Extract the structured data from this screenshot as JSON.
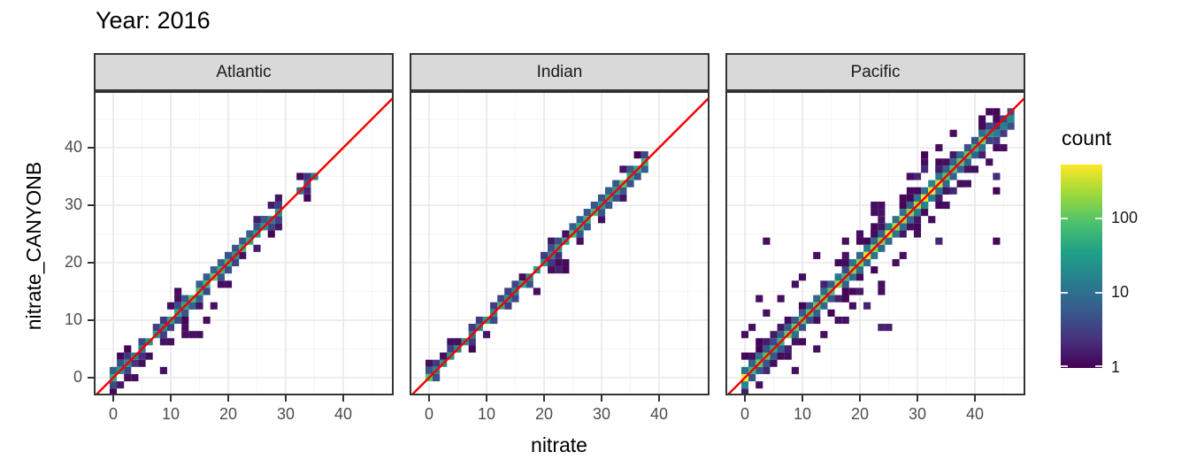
{
  "title": "Year: 2016",
  "axes": {
    "x_label": "nitrate",
    "y_label": "nitrate_CANYONB",
    "x_ticks": [
      0,
      10,
      20,
      30,
      40
    ],
    "y_ticks": [
      0,
      10,
      20,
      30,
      40
    ],
    "minor_ticks": [
      5,
      15,
      25,
      35,
      45
    ],
    "xlim": [
      -3.4,
      49.8
    ],
    "ylim": [
      -3.1,
      49.8
    ]
  },
  "legend": {
    "title": "count",
    "scale": "log10",
    "domain": [
      1,
      520
    ],
    "ticks": [
      {
        "label": "1",
        "value": 1
      },
      {
        "label": "10",
        "value": 10
      },
      {
        "label": "100",
        "value": 100
      }
    ]
  },
  "colors": {
    "abline": "#f40000",
    "strip_bg": "#d9d9d9",
    "panel_border": "#333333",
    "grid_major": "#e8e8e8",
    "grid_minor": "#f4f4f4",
    "tick_text": "#4d4d4d",
    "viridis": [
      [
        0,
        "#440154"
      ],
      [
        0.14,
        "#46327e"
      ],
      [
        0.29,
        "#365c8d"
      ],
      [
        0.43,
        "#277f8e"
      ],
      [
        0.57,
        "#1fa187"
      ],
      [
        0.71,
        "#4ac16d"
      ],
      [
        0.86,
        "#a0da39"
      ],
      [
        1,
        "#fde725"
      ]
    ]
  },
  "chart_data": {
    "type": "heatmap",
    "subtype": "bin2d",
    "bin_width": 1.25,
    "reference_line": "y = x",
    "count_scale": "log10 viridis, 1 to ~500",
    "facets": [
      {
        "label": "Atlantic",
        "diagonal_max": 35,
        "gaps": [
          [
            28.8,
            31.8
          ]
        ],
        "profile": [
          [
            -0.7,
            1.2,
            1.85
          ],
          [
            1.2,
            9,
            1.3
          ],
          [
            9,
            12,
            1.6
          ],
          [
            12,
            21,
            1.85
          ],
          [
            21,
            24,
            1.55
          ],
          [
            24,
            28.8,
            1.35
          ],
          [
            31.8,
            35.7,
            0.95
          ]
        ],
        "hotspots": [],
        "band": {
          "p1": 0.7,
          "p2": 0.22,
          "p3": 0.0
        },
        "blobs": [
          {
            "x": [
              10,
              17
            ],
            "y": [
              7,
              15
            ],
            "density": 0.18
          }
        ],
        "outliers": [
          [
            8.5,
            1.2
          ],
          [
            3.8,
            -0.2
          ],
          [
            10.4,
            12.5
          ],
          [
            11.5,
            13.9
          ],
          [
            17.6,
            12.2
          ],
          [
            12.9,
            7.6
          ],
          [
            14.1,
            7.6
          ],
          [
            15.4,
            7.6
          ],
          [
            12.2,
            8.8
          ],
          [
            16.2,
            10.1
          ],
          [
            10.1,
            5.9
          ],
          [
            6.3,
            3.9
          ],
          [
            2.5,
            0.1
          ],
          [
            5.1,
            2.8
          ],
          [
            23.0,
            21.6
          ],
          [
            26.4,
            27.6
          ],
          [
            18.9,
            16.5
          ],
          [
            20.1,
            16.5
          ]
        ]
      },
      {
        "label": "Indian",
        "diagonal_max": 38,
        "gaps": [],
        "profile": [
          [
            -0.7,
            1.2,
            1.75
          ],
          [
            1.2,
            9,
            1.3
          ],
          [
            9,
            19,
            1.5
          ],
          [
            19,
            25,
            1.4
          ],
          [
            25,
            33,
            1.75
          ],
          [
            33,
            38.7,
            1.9
          ]
        ],
        "hotspots": [],
        "band": {
          "p1": 0.6,
          "p2": 0.15,
          "p3": 0.0
        },
        "blobs": [
          {
            "x": [
              20,
              24
            ],
            "y": [
              18,
              23
            ],
            "density": 0.22
          }
        ],
        "outliers": [
          [
            0.6,
            2.6
          ],
          [
            1.9,
            3.3
          ],
          [
            7.1,
            8.7
          ],
          [
            18.2,
            15.4
          ],
          [
            21.0,
            19.0
          ],
          [
            22.9,
            20.4
          ],
          [
            23.5,
            25.1
          ],
          [
            26.6,
            24.2
          ],
          [
            13.3,
            14.9
          ],
          [
            29.9,
            27.8
          ],
          [
            4.5,
            6.0
          ],
          [
            11.4,
            9.8
          ],
          [
            16.4,
            18.0
          ],
          [
            2.6,
            4.1
          ],
          [
            31.1,
            32.6
          ]
        ]
      },
      {
        "label": "Pacific",
        "diagonal_max": 46,
        "gaps": [],
        "profile": [
          [
            -0.7,
            1.2,
            2.6
          ],
          [
            1.2,
            8,
            1.85
          ],
          [
            8,
            18,
            2.05
          ],
          [
            18,
            34,
            2.3
          ],
          [
            34,
            42,
            1.95
          ],
          [
            42,
            46.7,
            1.25
          ]
        ],
        "hotspots": [
          21,
          25.5,
          31,
          33
        ],
        "band": {
          "p1": 0.95,
          "p2": 0.5,
          "p3": 0.17
        },
        "blobs": [
          {
            "x": [
              19,
              26
            ],
            "y": [
              24,
              30
            ],
            "density": 0.3
          },
          {
            "x": [
              2,
              10
            ],
            "y": [
              5,
              12
            ],
            "density": 0.16
          },
          {
            "x": [
              11,
              20
            ],
            "y": [
              15,
              23
            ],
            "density": 0.14
          },
          {
            "x": [
              13,
              26
            ],
            "y": [
              8,
              16
            ],
            "density": 0.1
          },
          {
            "x": [
              28,
              40
            ],
            "y": [
              30,
              40
            ],
            "density": 0.1
          },
          {
            "x": [
              0,
              6
            ],
            "y": [
              -1,
              4
            ],
            "density": 0.22
          },
          {
            "x": [
              29,
              44
            ],
            "y": [
              23,
              37
            ],
            "density": 0.06
          }
        ],
        "outliers": [
          [
            3.2,
            24.0
          ],
          [
            2.5,
            13.2
          ],
          [
            1.2,
            8.3
          ],
          [
            -0.5,
            7.0
          ],
          [
            3.9,
            10.9
          ],
          [
            5.2,
            2.0
          ],
          [
            7.8,
            3.4
          ],
          [
            9.0,
            16.5
          ],
          [
            14.2,
            7.8
          ],
          [
            16.5,
            9.6
          ],
          [
            19.0,
            12.1
          ],
          [
            23.9,
            16.5
          ],
          [
            27.7,
            21.4
          ],
          [
            30.3,
            24.6
          ],
          [
            33.0,
            27.2
          ],
          [
            35.5,
            30.2
          ],
          [
            38.1,
            33.3
          ],
          [
            40.6,
            35.9
          ],
          [
            43.1,
            38.1
          ],
          [
            8.8,
            1.1
          ],
          [
            12.1,
            4.6
          ],
          [
            26.1,
            19.6
          ],
          [
            44.6,
            40.1
          ],
          [
            36.1,
            42.1
          ],
          [
            31.1,
            37.6
          ],
          [
            28.6,
            35.1
          ],
          [
            2.1,
            -0.9
          ],
          [
            6.6,
            14.0
          ],
          [
            10.3,
            17.8
          ],
          [
            13.1,
            21.1
          ],
          [
            20.3,
            25.0
          ],
          [
            24.1,
            29.9
          ],
          [
            22.1,
            29.1
          ],
          [
            18.1,
            23.6
          ],
          [
            34.1,
            39.6
          ],
          [
            41.1,
            43.9
          ]
        ]
      }
    ]
  }
}
